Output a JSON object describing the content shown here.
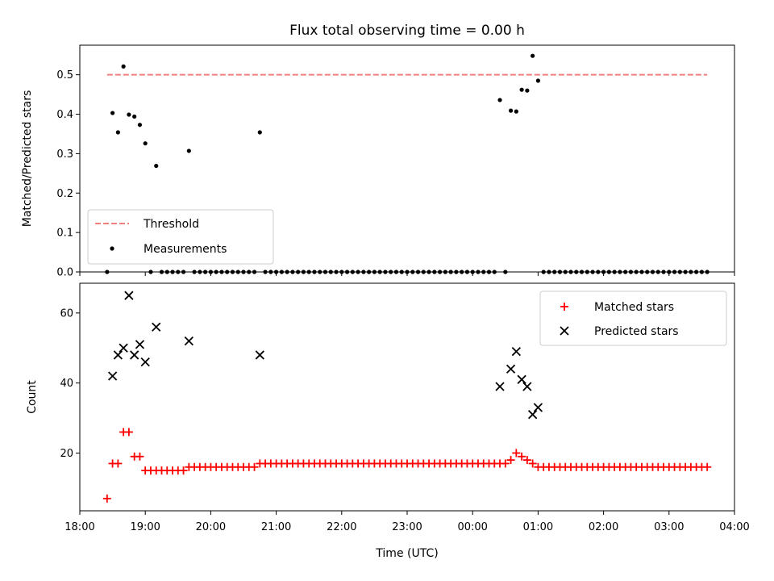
{
  "chart_data": [
    {
      "type": "scatter",
      "title": "Flux total observing time = 0.00 h",
      "xlabel": "",
      "ylabel": "Matched/Predicted stars",
      "xlim": [
        "18:00",
        "04:00"
      ],
      "ylim": [
        0,
        0.575
      ],
      "yticks": [
        0.0,
        0.1,
        0.2,
        0.3,
        0.4,
        0.5
      ],
      "xticks": [
        "18:00",
        "19:00",
        "20:00",
        "21:00",
        "22:00",
        "23:00",
        "00:00",
        "01:00",
        "02:00",
        "03:00",
        "04:00"
      ],
      "legend_position": "lower-left",
      "threshold": {
        "name": "Threshold",
        "value": 0.5,
        "x_start": "18:25",
        "x_end": "03:35",
        "color": "#f08080"
      },
      "series": [
        {
          "name": "Measurements",
          "color": "#000000",
          "marker": "dot",
          "points": [
            [
              "18:25",
              0
            ],
            [
              "18:30",
              0.403
            ],
            [
              "18:35",
              0.354
            ],
            [
              "18:40",
              0.521
            ],
            [
              "18:45",
              0.399
            ],
            [
              "18:50",
              0.394
            ],
            [
              "18:55",
              0.373
            ],
            [
              "19:00",
              0.326
            ],
            [
              "19:05",
              0
            ],
            [
              "19:10",
              0.269
            ],
            [
              "19:15",
              0
            ],
            [
              "19:20",
              0
            ],
            [
              "19:25",
              0
            ],
            [
              "19:30",
              0
            ],
            [
              "19:35",
              0
            ],
            [
              "19:40",
              0.307
            ],
            [
              "19:45",
              0
            ],
            [
              "19:50",
              0
            ],
            [
              "19:55",
              0
            ],
            [
              "20:00",
              0
            ],
            [
              "20:05",
              0
            ],
            [
              "20:10",
              0
            ],
            [
              "20:15",
              0
            ],
            [
              "20:20",
              0
            ],
            [
              "20:25",
              0
            ],
            [
              "20:30",
              0
            ],
            [
              "20:35",
              0
            ],
            [
              "20:40",
              0
            ],
            [
              "20:45",
              0.354
            ],
            [
              "20:50",
              0
            ],
            [
              "20:55",
              0
            ],
            [
              "21:00",
              0
            ],
            [
              "21:05",
              0
            ],
            [
              "21:10",
              0
            ],
            [
              "21:15",
              0
            ],
            [
              "21:20",
              0
            ],
            [
              "21:25",
              0
            ],
            [
              "21:30",
              0
            ],
            [
              "21:35",
              0
            ],
            [
              "21:40",
              0
            ],
            [
              "21:45",
              0
            ],
            [
              "21:50",
              0
            ],
            [
              "21:55",
              0
            ],
            [
              "22:00",
              0
            ],
            [
              "22:05",
              0
            ],
            [
              "22:10",
              0
            ],
            [
              "22:15",
              0
            ],
            [
              "22:20",
              0
            ],
            [
              "22:25",
              0
            ],
            [
              "22:30",
              0
            ],
            [
              "22:35",
              0
            ],
            [
              "22:40",
              0
            ],
            [
              "22:45",
              0
            ],
            [
              "22:50",
              0
            ],
            [
              "22:55",
              0
            ],
            [
              "23:00",
              0
            ],
            [
              "23:05",
              0
            ],
            [
              "23:10",
              0
            ],
            [
              "23:15",
              0
            ],
            [
              "23:20",
              0
            ],
            [
              "23:25",
              0
            ],
            [
              "23:30",
              0
            ],
            [
              "23:35",
              0
            ],
            [
              "23:40",
              0
            ],
            [
              "23:45",
              0
            ],
            [
              "23:50",
              0
            ],
            [
              "23:55",
              0
            ],
            [
              "00:00",
              0
            ],
            [
              "00:05",
              0
            ],
            [
              "00:10",
              0
            ],
            [
              "00:15",
              0
            ],
            [
              "00:20",
              0
            ],
            [
              "00:25",
              0.436
            ],
            [
              "00:30",
              0
            ],
            [
              "00:35",
              0.409
            ],
            [
              "00:40",
              0.407
            ],
            [
              "00:45",
              0.462
            ],
            [
              "00:50",
              0.46
            ],
            [
              "00:55",
              0.548
            ],
            [
              "01:00",
              0.485
            ],
            [
              "01:05",
              0
            ],
            [
              "01:10",
              0
            ],
            [
              "01:15",
              0
            ],
            [
              "01:20",
              0
            ],
            [
              "01:25",
              0
            ],
            [
              "01:30",
              0
            ],
            [
              "01:35",
              0
            ],
            [
              "01:40",
              0
            ],
            [
              "01:45",
              0
            ],
            [
              "01:50",
              0
            ],
            [
              "01:55",
              0
            ],
            [
              "02:00",
              0
            ],
            [
              "02:05",
              0
            ],
            [
              "02:10",
              0
            ],
            [
              "02:15",
              0
            ],
            [
              "02:20",
              0
            ],
            [
              "02:25",
              0
            ],
            [
              "02:30",
              0
            ],
            [
              "02:35",
              0
            ],
            [
              "02:40",
              0
            ],
            [
              "02:45",
              0
            ],
            [
              "02:50",
              0
            ],
            [
              "02:55",
              0
            ],
            [
              "03:00",
              0
            ],
            [
              "03:05",
              0
            ],
            [
              "03:10",
              0
            ],
            [
              "03:15",
              0
            ],
            [
              "03:20",
              0
            ],
            [
              "03:25",
              0
            ],
            [
              "03:30",
              0
            ],
            [
              "03:35",
              0
            ]
          ]
        }
      ]
    },
    {
      "type": "scatter",
      "title": "",
      "xlabel": "Time (UTC)",
      "ylabel": "Count",
      "xlim": [
        "18:00",
        "04:00"
      ],
      "ylim": [
        3.5,
        68.5
      ],
      "yticks": [
        20,
        40,
        60
      ],
      "xticks": [
        "18:00",
        "19:00",
        "20:00",
        "21:00",
        "22:00",
        "23:00",
        "00:00",
        "01:00",
        "02:00",
        "03:00",
        "04:00"
      ],
      "legend_position": "upper-right",
      "series": [
        {
          "name": "Matched stars",
          "color": "#ff0000",
          "marker": "plus",
          "points": [
            [
              "18:25",
              7
            ],
            [
              "18:30",
              17
            ],
            [
              "18:35",
              17
            ],
            [
              "18:40",
              26
            ],
            [
              "18:45",
              26
            ],
            [
              "18:50",
              19
            ],
            [
              "18:55",
              19
            ],
            [
              "19:00",
              15
            ],
            [
              "19:05",
              15
            ],
            [
              "19:10",
              15
            ],
            [
              "19:15",
              15
            ],
            [
              "19:20",
              15
            ],
            [
              "19:25",
              15
            ],
            [
              "19:30",
              15
            ],
            [
              "19:35",
              15
            ],
            [
              "19:40",
              16
            ],
            [
              "19:45",
              16
            ],
            [
              "19:50",
              16
            ],
            [
              "19:55",
              16
            ],
            [
              "20:00",
              16
            ],
            [
              "20:05",
              16
            ],
            [
              "20:10",
              16
            ],
            [
              "20:15",
              16
            ],
            [
              "20:20",
              16
            ],
            [
              "20:25",
              16
            ],
            [
              "20:30",
              16
            ],
            [
              "20:35",
              16
            ],
            [
              "20:40",
              16
            ],
            [
              "20:45",
              17
            ],
            [
              "20:50",
              17
            ],
            [
              "20:55",
              17
            ],
            [
              "21:00",
              17
            ],
            [
              "21:05",
              17
            ],
            [
              "21:10",
              17
            ],
            [
              "21:15",
              17
            ],
            [
              "21:20",
              17
            ],
            [
              "21:25",
              17
            ],
            [
              "21:30",
              17
            ],
            [
              "21:35",
              17
            ],
            [
              "21:40",
              17
            ],
            [
              "21:45",
              17
            ],
            [
              "21:50",
              17
            ],
            [
              "21:55",
              17
            ],
            [
              "22:00",
              17
            ],
            [
              "22:05",
              17
            ],
            [
              "22:10",
              17
            ],
            [
              "22:15",
              17
            ],
            [
              "22:20",
              17
            ],
            [
              "22:25",
              17
            ],
            [
              "22:30",
              17
            ],
            [
              "22:35",
              17
            ],
            [
              "22:40",
              17
            ],
            [
              "22:45",
              17
            ],
            [
              "22:50",
              17
            ],
            [
              "22:55",
              17
            ],
            [
              "23:00",
              17
            ],
            [
              "23:05",
              17
            ],
            [
              "23:10",
              17
            ],
            [
              "23:15",
              17
            ],
            [
              "23:20",
              17
            ],
            [
              "23:25",
              17
            ],
            [
              "23:30",
              17
            ],
            [
              "23:35",
              17
            ],
            [
              "23:40",
              17
            ],
            [
              "23:45",
              17
            ],
            [
              "23:50",
              17
            ],
            [
              "23:55",
              17
            ],
            [
              "00:00",
              17
            ],
            [
              "00:05",
              17
            ],
            [
              "00:10",
              17
            ],
            [
              "00:15",
              17
            ],
            [
              "00:20",
              17
            ],
            [
              "00:25",
              17
            ],
            [
              "00:30",
              17
            ],
            [
              "00:35",
              18
            ],
            [
              "00:40",
              20
            ],
            [
              "00:45",
              19
            ],
            [
              "00:50",
              18
            ],
            [
              "00:55",
              17
            ],
            [
              "01:00",
              16
            ],
            [
              "01:05",
              16
            ],
            [
              "01:10",
              16
            ],
            [
              "01:15",
              16
            ],
            [
              "01:20",
              16
            ],
            [
              "01:25",
              16
            ],
            [
              "01:30",
              16
            ],
            [
              "01:35",
              16
            ],
            [
              "01:40",
              16
            ],
            [
              "01:45",
              16
            ],
            [
              "01:50",
              16
            ],
            [
              "01:55",
              16
            ],
            [
              "02:00",
              16
            ],
            [
              "02:05",
              16
            ],
            [
              "02:10",
              16
            ],
            [
              "02:15",
              16
            ],
            [
              "02:20",
              16
            ],
            [
              "02:25",
              16
            ],
            [
              "02:30",
              16
            ],
            [
              "02:35",
              16
            ],
            [
              "02:40",
              16
            ],
            [
              "02:45",
              16
            ],
            [
              "02:50",
              16
            ],
            [
              "02:55",
              16
            ],
            [
              "03:00",
              16
            ],
            [
              "03:05",
              16
            ],
            [
              "03:10",
              16
            ],
            [
              "03:15",
              16
            ],
            [
              "03:20",
              16
            ],
            [
              "03:25",
              16
            ],
            [
              "03:30",
              16
            ],
            [
              "03:35",
              16
            ]
          ]
        },
        {
          "name": "Predicted stars",
          "color": "#000000",
          "marker": "x",
          "points": [
            [
              "18:30",
              42
            ],
            [
              "18:35",
              48
            ],
            [
              "18:40",
              50
            ],
            [
              "18:45",
              65
            ],
            [
              "18:50",
              48
            ],
            [
              "18:55",
              51
            ],
            [
              "19:00",
              46
            ],
            [
              "19:10",
              56
            ],
            [
              "19:40",
              52
            ],
            [
              "20:45",
              48
            ],
            [
              "00:25",
              39
            ],
            [
              "00:35",
              44
            ],
            [
              "00:40",
              49
            ],
            [
              "00:45",
              41
            ],
            [
              "00:50",
              39
            ],
            [
              "00:55",
              31
            ],
            [
              "01:00",
              33
            ]
          ]
        }
      ]
    }
  ]
}
